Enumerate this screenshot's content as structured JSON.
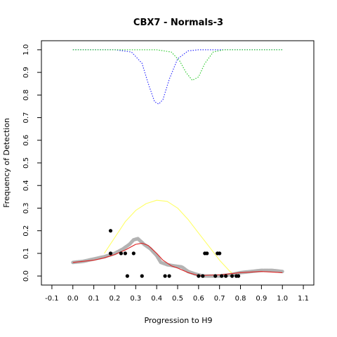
{
  "chart_data": {
    "type": "scatter",
    "title": "CBX7 - Normals-3",
    "xlabel": "Progression to H9",
    "ylabel": "Frequency of Detection",
    "xlim": [
      -0.15,
      1.15
    ],
    "ylim": [
      -0.04,
      1.04
    ],
    "xticks": [
      -0.1,
      0.0,
      0.1,
      0.2,
      0.3,
      0.4,
      0.5,
      0.6,
      0.7,
      0.8,
      0.9,
      1.0,
      1.1
    ],
    "xtick_labels": [
      "-0.1",
      "0.0",
      "0.1",
      "0.2",
      "0.3",
      "0.4",
      "0.5",
      "0.6",
      "0.7",
      "0.8",
      "0.9",
      "1.0",
      "1.1"
    ],
    "yticks": [
      0.0,
      0.1,
      0.2,
      0.3,
      0.4,
      0.5,
      0.6,
      0.7,
      0.8,
      0.9,
      1.0
    ],
    "ytick_labels": [
      "0.0",
      "0.1",
      "0.2",
      "0.3",
      "0.4",
      "0.5",
      "0.6",
      "0.7",
      "0.8",
      "0.9",
      "1.0"
    ],
    "grid": false,
    "series": [
      {
        "style": "dotted-line",
        "color": "#3333ff",
        "points": [
          [
            0.0,
            1.0
          ],
          [
            0.2,
            1.0
          ],
          [
            0.28,
            0.99
          ],
          [
            0.33,
            0.94
          ],
          [
            0.36,
            0.85
          ],
          [
            0.39,
            0.77
          ],
          [
            0.41,
            0.76
          ],
          [
            0.43,
            0.78
          ],
          [
            0.46,
            0.87
          ],
          [
            0.5,
            0.96
          ],
          [
            0.55,
            0.995
          ],
          [
            0.6,
            1.0
          ],
          [
            1.0,
            1.0
          ]
        ]
      },
      {
        "style": "dotted-line",
        "color": "#33cc33",
        "points": [
          [
            0.0,
            1.0
          ],
          [
            0.4,
            1.0
          ],
          [
            0.47,
            0.99
          ],
          [
            0.51,
            0.95
          ],
          [
            0.54,
            0.9
          ],
          [
            0.57,
            0.865
          ],
          [
            0.6,
            0.88
          ],
          [
            0.63,
            0.94
          ],
          [
            0.67,
            0.99
          ],
          [
            0.72,
            1.0
          ],
          [
            1.0,
            1.0
          ]
        ]
      },
      {
        "style": "line",
        "color": "#ffff66",
        "points": [
          [
            0.15,
            0.1
          ],
          [
            0.2,
            0.17
          ],
          [
            0.25,
            0.24
          ],
          [
            0.3,
            0.29
          ],
          [
            0.35,
            0.32
          ],
          [
            0.4,
            0.335
          ],
          [
            0.45,
            0.33
          ],
          [
            0.5,
            0.3
          ],
          [
            0.55,
            0.25
          ],
          [
            0.6,
            0.19
          ],
          [
            0.65,
            0.13
          ],
          [
            0.7,
            0.07
          ],
          [
            0.75,
            0.02
          ],
          [
            0.78,
            0.0
          ]
        ]
      },
      {
        "style": "thick-line",
        "color": "#b3b3b3",
        "points": [
          [
            0.0,
            0.06
          ],
          [
            0.05,
            0.065
          ],
          [
            0.1,
            0.075
          ],
          [
            0.15,
            0.085
          ],
          [
            0.2,
            0.1
          ],
          [
            0.24,
            0.12
          ],
          [
            0.27,
            0.14
          ],
          [
            0.29,
            0.16
          ],
          [
            0.31,
            0.165
          ],
          [
            0.34,
            0.14
          ],
          [
            0.37,
            0.12
          ],
          [
            0.4,
            0.09
          ],
          [
            0.42,
            0.06
          ],
          [
            0.45,
            0.05
          ],
          [
            0.48,
            0.045
          ],
          [
            0.52,
            0.04
          ],
          [
            0.55,
            0.02
          ],
          [
            0.58,
            0.01
          ],
          [
            0.62,
            0.0
          ],
          [
            0.7,
            0.0
          ],
          [
            0.75,
            0.005
          ],
          [
            0.8,
            0.015
          ],
          [
            0.85,
            0.02
          ],
          [
            0.9,
            0.025
          ],
          [
            0.95,
            0.025
          ],
          [
            1.0,
            0.02
          ]
        ]
      },
      {
        "style": "line",
        "color": "#dd2222",
        "points": [
          [
            0.0,
            0.06
          ],
          [
            0.05,
            0.065
          ],
          [
            0.1,
            0.07
          ],
          [
            0.15,
            0.08
          ],
          [
            0.2,
            0.095
          ],
          [
            0.25,
            0.115
          ],
          [
            0.3,
            0.14
          ],
          [
            0.33,
            0.145
          ],
          [
            0.36,
            0.135
          ],
          [
            0.4,
            0.1
          ],
          [
            0.43,
            0.07
          ],
          [
            0.47,
            0.045
          ],
          [
            0.5,
            0.035
          ],
          [
            0.55,
            0.015
          ],
          [
            0.6,
            0.002
          ],
          [
            0.7,
            0.005
          ],
          [
            0.8,
            0.015
          ],
          [
            0.9,
            0.02
          ],
          [
            1.0,
            0.015
          ]
        ]
      },
      {
        "style": "points",
        "color": "#000000",
        "points": [
          [
            0.18,
            0.2
          ],
          [
            0.18,
            0.1
          ],
          [
            0.23,
            0.1
          ],
          [
            0.25,
            0.1
          ],
          [
            0.26,
            0.0
          ],
          [
            0.29,
            0.1
          ],
          [
            0.33,
            0.0
          ],
          [
            0.44,
            0.0
          ],
          [
            0.46,
            0.0
          ],
          [
            0.6,
            0.0
          ],
          [
            0.62,
            0.0
          ],
          [
            0.63,
            0.1
          ],
          [
            0.64,
            0.1
          ],
          [
            0.68,
            0.0
          ],
          [
            0.69,
            0.1
          ],
          [
            0.7,
            0.1
          ],
          [
            0.71,
            0.0
          ],
          [
            0.73,
            0.0
          ],
          [
            0.76,
            0.0
          ],
          [
            0.78,
            0.0
          ],
          [
            0.79,
            0.0
          ]
        ]
      }
    ]
  }
}
